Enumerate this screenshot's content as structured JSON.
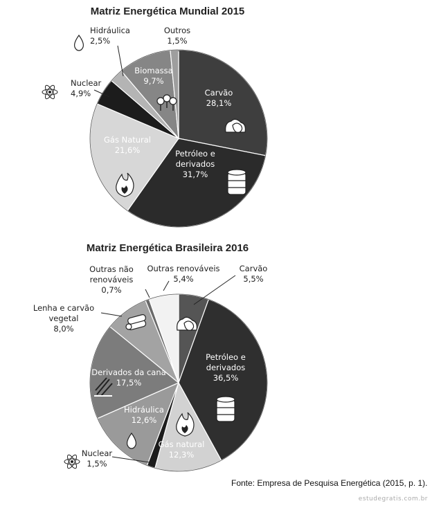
{
  "chart_data": [
    {
      "type": "pie",
      "title": "Matriz Energética Mundial 2015",
      "slices": [
        {
          "lines": [
            "Carvão",
            "28,1%"
          ],
          "value": 28.1,
          "color": "#3e3e3e",
          "text_color": "#ffffff",
          "icon": "coal-icon"
        },
        {
          "lines": [
            "Petróleo e",
            "derivados",
            "31,7%"
          ],
          "value": 31.7,
          "color": "#2b2b2b",
          "text_color": "#ffffff",
          "icon": "oil-barrel-icon"
        },
        {
          "lines": [
            "Gás Natural",
            "21,6%"
          ],
          "value": 21.6,
          "color": "#d7d7d7",
          "text_color": "#ffffff",
          "icon": "flame-icon"
        },
        {
          "lines": [
            "Nuclear",
            "4,9%"
          ],
          "value": 4.9,
          "color": "#1c1c1c",
          "text_color": "#222222",
          "icon": "atom-icon"
        },
        {
          "lines": [
            "Hidráulica",
            "2,5%"
          ],
          "value": 2.5,
          "color": "#b4b4b4",
          "text_color": "#222222",
          "icon": "water-drop-icon"
        },
        {
          "lines": [
            "Biomassa",
            "9,7%"
          ],
          "value": 9.7,
          "color": "#868686",
          "text_color": "#ffffff",
          "icon": "trees-icon"
        },
        {
          "lines": [
            "Outros",
            "1,5%"
          ],
          "value": 1.5,
          "color": "#9e9e9e",
          "text_color": "#222222",
          "icon": ""
        }
      ]
    },
    {
      "type": "pie",
      "title": "Matriz Energética Brasileira 2016",
      "slices": [
        {
          "lines": [
            "Carvão",
            "5,5%"
          ],
          "value": 5.5,
          "color": "#555555",
          "text_color": "#222222",
          "icon": "coal-icon"
        },
        {
          "lines": [
            "Petróleo e",
            "derivados",
            "36,5%"
          ],
          "value": 36.5,
          "color": "#2f2f2f",
          "text_color": "#ffffff",
          "icon": "oil-barrel-icon"
        },
        {
          "lines": [
            "Gás natural",
            "12,3%"
          ],
          "value": 12.3,
          "color": "#d2d2d2",
          "text_color": "#ffffff",
          "icon": "flame-icon"
        },
        {
          "lines": [
            "Nuclear",
            "1,5%"
          ],
          "value": 1.5,
          "color": "#1c1c1c",
          "text_color": "#222222",
          "icon": "atom-icon"
        },
        {
          "lines": [
            "Hidráulica",
            "12,6%"
          ],
          "value": 12.6,
          "color": "#9a9a9a",
          "text_color": "#ffffff",
          "icon": "water-drop-icon"
        },
        {
          "lines": [
            "Derivados da cana",
            "17,5%"
          ],
          "value": 17.5,
          "color": "#7c7c7c",
          "text_color": "#ffffff",
          "icon": "sugarcane-icon"
        },
        {
          "lines": [
            "Lenha e carvão",
            "vegetal",
            "8,0%"
          ],
          "value": 8.0,
          "color": "#a3a3a3",
          "text_color": "#222222",
          "icon": "firewood-icon"
        },
        {
          "lines": [
            "Outras não",
            "renováveis",
            "0,7%"
          ],
          "value": 0.7,
          "color": "#6a6a6a",
          "text_color": "#222222",
          "icon": ""
        },
        {
          "lines": [
            "Outras renováveis",
            "5,4%"
          ],
          "value": 5.4,
          "color": "#f2f2f2",
          "text_color": "#222222",
          "icon": ""
        }
      ]
    }
  ],
  "source": "Fonte: Empresa de Pesquisa Energética (2015, p. 1).",
  "watermark": "estudegratis.com.br"
}
